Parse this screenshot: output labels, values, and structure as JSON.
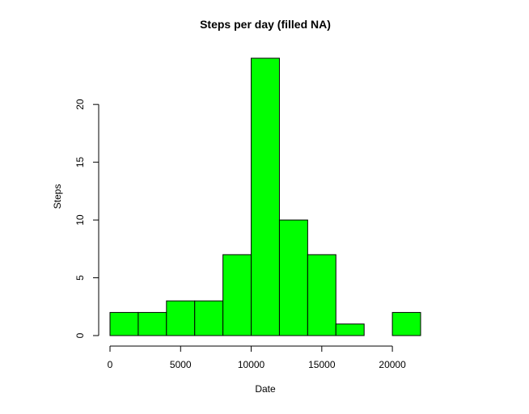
{
  "chart_data": {
    "type": "bar",
    "subtype": "histogram",
    "title": "Steps per day (filled NA)",
    "xlabel": "Date",
    "ylabel": "Steps",
    "bins": [
      {
        "from": 0,
        "to": 2000,
        "count": 2
      },
      {
        "from": 2000,
        "to": 4000,
        "count": 2
      },
      {
        "from": 4000,
        "to": 6000,
        "count": 3
      },
      {
        "from": 6000,
        "to": 8000,
        "count": 3
      },
      {
        "from": 8000,
        "to": 10000,
        "count": 7
      },
      {
        "from": 10000,
        "to": 12000,
        "count": 24
      },
      {
        "from": 12000,
        "to": 14000,
        "count": 10
      },
      {
        "from": 14000,
        "to": 16000,
        "count": 7
      },
      {
        "from": 16000,
        "to": 18000,
        "count": 1
      },
      {
        "from": 18000,
        "to": 20000,
        "count": 0
      },
      {
        "from": 20000,
        "to": 22000,
        "count": 2
      }
    ],
    "xticks": [
      0,
      5000,
      10000,
      15000,
      20000
    ],
    "yticks": [
      0,
      5,
      10,
      15,
      20
    ],
    "xlim": [
      0,
      22000
    ],
    "ylim": [
      0,
      24
    ],
    "grid": false,
    "legend": "none",
    "bar_color": "#00ff00",
    "bar_edge_color": "#000000"
  }
}
